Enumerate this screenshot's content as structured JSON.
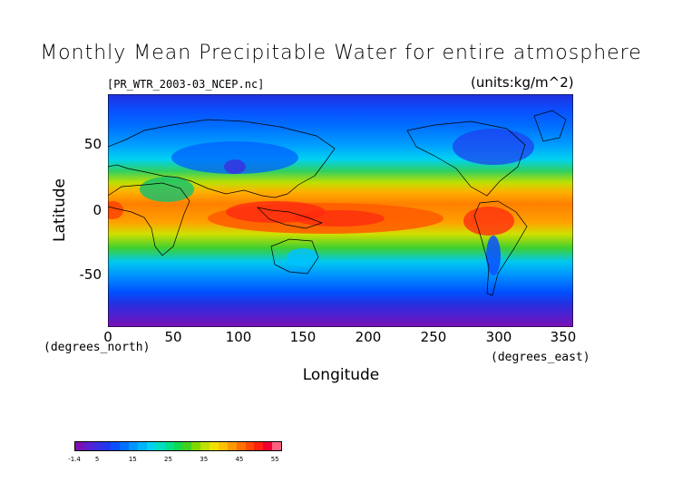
{
  "title": "Monthly Mean Precipitable Water for entire atmosphere",
  "file_label": "[PR_WTR_2003-03_NCEP.nc]",
  "units_label": "(units:kg/m^2)",
  "axes": {
    "ylabel": "Latitude",
    "xlabel": "Longitude",
    "lat_unit": "(degrees_north)",
    "lon_unit": "(degrees_east)",
    "y_ticks": [
      "50",
      "0",
      "-50"
    ],
    "x_ticks": [
      "0",
      "50",
      "100",
      "150",
      "200",
      "250",
      "300",
      "350"
    ],
    "x_range": [
      0,
      357.5
    ],
    "y_range": [
      -90,
      90
    ]
  },
  "colorbar": {
    "tick_labels": [
      "-1.4",
      "5",
      "15",
      "25",
      "35",
      "45",
      "55"
    ],
    "min": -1.4,
    "max": 57,
    "colors": [
      "#7a0fb3",
      "#5a1fd0",
      "#3b2ee0",
      "#1f3af0",
      "#0a50ff",
      "#0070ff",
      "#0095ff",
      "#00b4ff",
      "#00d2f0",
      "#00dfc0",
      "#00e08a",
      "#10d850",
      "#40d020",
      "#80d800",
      "#c0e000",
      "#f0e000",
      "#ffc000",
      "#ff9800",
      "#ff7000",
      "#ff4800",
      "#ff2010",
      "#f00030",
      "#ff6080"
    ]
  }
}
